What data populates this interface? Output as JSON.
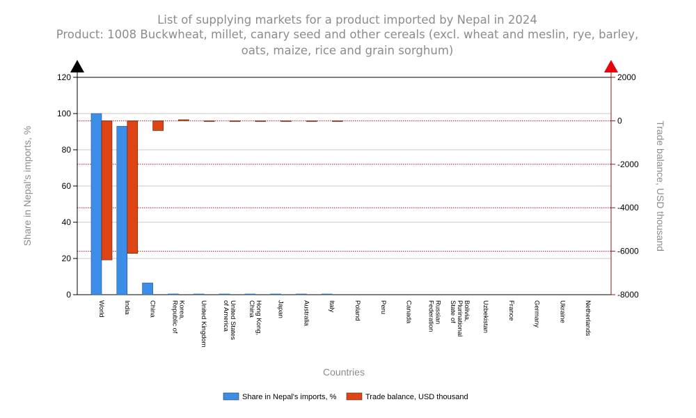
{
  "chart_data": {
    "type": "bar",
    "title": "List of supplying markets for a product imported by Nepal in 2024",
    "subtitle": [
      "Product: 1008 Buckwheat, millet, canary seed and other cereals (excl. wheat and meslin, rye, barley,",
      "oats, maize, rice and grain sorghum)"
    ],
    "xlabel": "Countries",
    "ylabel_left": "Share in Nepal's imports, %",
    "ylabel_right": "Trade balance, USD thousand",
    "ylim_left": [
      0,
      120
    ],
    "ylim_right": [
      -8000,
      2000
    ],
    "yticks_left": [
      "0",
      "20",
      "40",
      "60",
      "80",
      "100",
      "120"
    ],
    "yticks_right": [
      "-8000",
      "-6000",
      "-4000",
      "-2000",
      "0",
      "2000"
    ],
    "categories": [
      [
        "World"
      ],
      [
        "India"
      ],
      [
        "China"
      ],
      [
        "Korea,",
        "Republic of"
      ],
      [
        "United Kingdom"
      ],
      [
        "United States",
        "of America"
      ],
      [
        "Hong Kong,",
        "China"
      ],
      [
        "Japan"
      ],
      [
        "Australia"
      ],
      [
        "Italy"
      ],
      [
        "Poland"
      ],
      [
        "Peru"
      ],
      [
        "Canada"
      ],
      [
        "Russian",
        "Federation"
      ],
      [
        "Bolivia,",
        "Plurinational",
        "State of"
      ],
      [
        "Uzbekistan"
      ],
      [
        "France"
      ],
      [
        "Germany"
      ],
      [
        "Ukraine"
      ],
      [
        "Netherlands"
      ]
    ],
    "series": [
      {
        "name": "Share in Nepal's imports, %",
        "axis": "left",
        "color": "#3d8ee8",
        "values": [
          100,
          93,
          6.5,
          0.4,
          0.15,
          0.1,
          0.1,
          0.1,
          0.05,
          0.05,
          0,
          0,
          0,
          0,
          0,
          0,
          0,
          0,
          0,
          0
        ]
      },
      {
        "name": "Trade balance, USD thousand",
        "axis": "right",
        "color": "#df4514",
        "values": [
          -6400,
          -6100,
          -450,
          50,
          -10,
          -10,
          -10,
          -5,
          -5,
          -5,
          0,
          0,
          0,
          0,
          0,
          0,
          0,
          0,
          0,
          0
        ]
      }
    ],
    "legend_position": "bottom-center",
    "grid": true
  }
}
